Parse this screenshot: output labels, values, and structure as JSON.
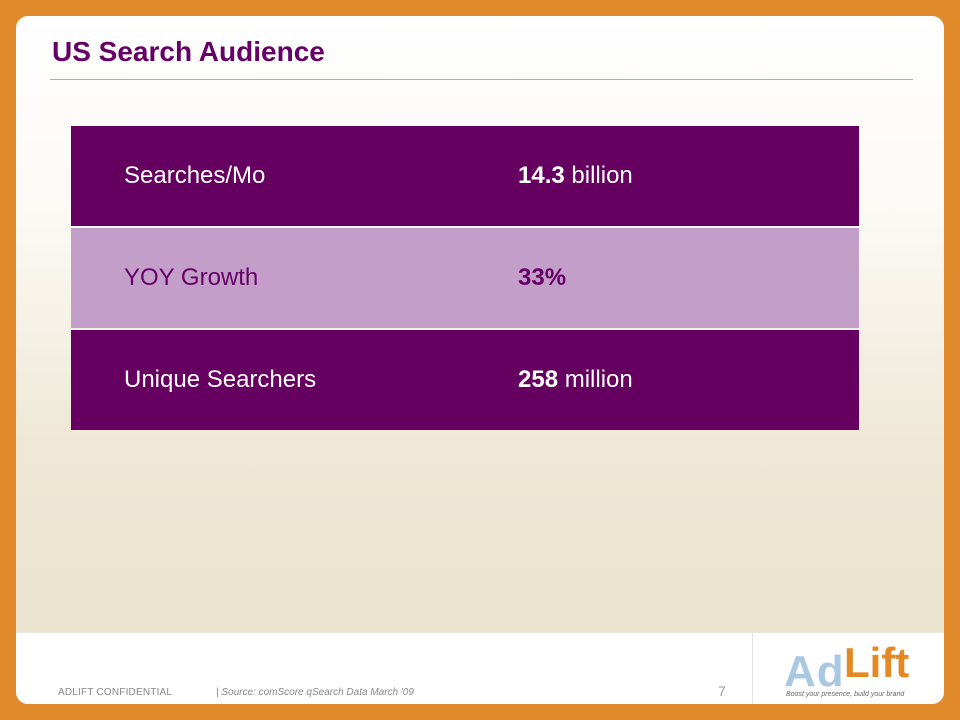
{
  "slide": {
    "title": "US Search Audience"
  },
  "stats": [
    {
      "label": "Searches/Mo",
      "value_bold": "14.3",
      "value_rest": " billion"
    },
    {
      "label": "YOY Growth",
      "value_bold": "33%",
      "value_rest": ""
    },
    {
      "label": "Unique Searchers",
      "value_bold": "258",
      "value_rest": " million"
    }
  ],
  "footer": {
    "confidential": "ADLIFT CONFIDENTIAL",
    "source": "| Source: comScore qSearch Data March '09",
    "page_number": "7"
  },
  "logo": {
    "ad": "Ad",
    "lift": "Lift",
    "tagline": "Boost your presence, build your brand"
  },
  "colors": {
    "frame": "#e08a2c",
    "title": "#660066",
    "row_dark": "#650060",
    "row_light": "#c39ec8"
  }
}
